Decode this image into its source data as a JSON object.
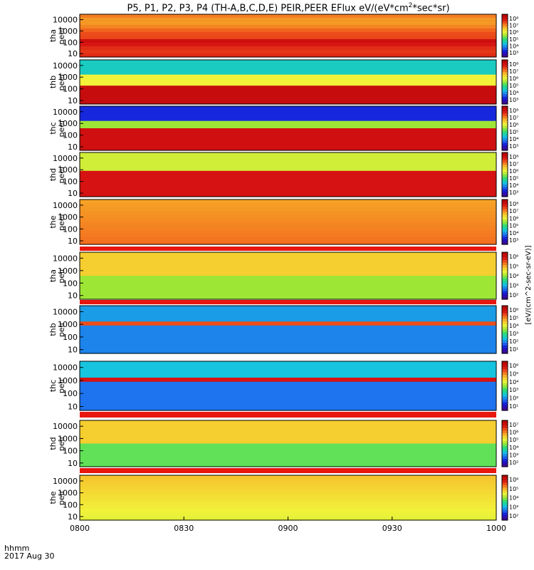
{
  "title_prefix": "P5, P1, P2, P3, P4 (TH-A,B,C,D,E) PEIR,PEER EFlux eV/(eV*cm",
  "title_mid": "*sec*sr)",
  "title_sup": "2",
  "bottom_left": {
    "line1": "hhmm",
    "line2": "2017 Aug 30"
  },
  "colors": {
    "rainbow": [
      "#3a0a96",
      "#1414d8",
      "#1e74ee",
      "#16c4e0",
      "#22dc7a",
      "#9ee636",
      "#f2f23a",
      "#f7b62a",
      "#f25c1c",
      "#d61212",
      "#b60606"
    ]
  },
  "chart_data": {
    "type": "heatmap",
    "xlabel": "",
    "x_tick_labels": [
      "0800",
      "0830",
      "0900",
      "0930",
      "1000"
    ],
    "x_range": [
      "08:00",
      "10:00"
    ],
    "y_tick_labels": [
      "10000",
      "1000",
      "100",
      "10"
    ],
    "y_scale": "log",
    "y_range": [
      5,
      30000
    ],
    "colorbar_label": "[eV/(cm^2-sec-sr-eV)]",
    "panels": [
      {
        "label": "tha\npeer",
        "cbar_ticks": [
          "10⁸",
          "10⁷",
          "10⁶",
          "10⁵",
          "10⁴",
          "10³"
        ]
      },
      {
        "label": "thb\npeer",
        "cbar_ticks": [
          "10⁸",
          "10⁷",
          "10⁶",
          "10⁵",
          "10⁴",
          "10³"
        ]
      },
      {
        "label": "thc\npeer",
        "cbar_ticks": [
          "10⁸",
          "10⁷",
          "10⁶",
          "10⁵",
          "10⁴",
          "10³"
        ]
      },
      {
        "label": "thd\npeer",
        "cbar_ticks": [
          "10⁸",
          "10⁷",
          "10⁶",
          "10⁵",
          "10⁴",
          "10³"
        ]
      },
      {
        "label": "the\npeer",
        "cbar_ticks": [
          "10⁸",
          "10⁷",
          "10⁶",
          "10⁵",
          "10⁴",
          "10³"
        ]
      },
      {
        "label": "tha\npeir",
        "cbar_ticks": [
          "10⁶",
          "10⁵",
          "10⁴",
          "10³",
          "10²"
        ]
      },
      {
        "label": "thb\npeir",
        "cbar_ticks": [
          "10⁶",
          "10⁵",
          "10⁴",
          "10³",
          "10²",
          "10¹"
        ]
      },
      {
        "label": "thc\npeir",
        "cbar_ticks": [
          "10⁶",
          "10⁵",
          "10⁴",
          "10³",
          "10²",
          "10¹"
        ]
      },
      {
        "label": "thd\npeir",
        "cbar_ticks": [
          "10⁷",
          "10⁶",
          "10⁵",
          "10⁴",
          "10³",
          "10²"
        ]
      },
      {
        "label": "the\npeir",
        "cbar_ticks": [
          "10⁶",
          "10⁵",
          "10⁴",
          "10³",
          "10²"
        ]
      }
    ]
  }
}
